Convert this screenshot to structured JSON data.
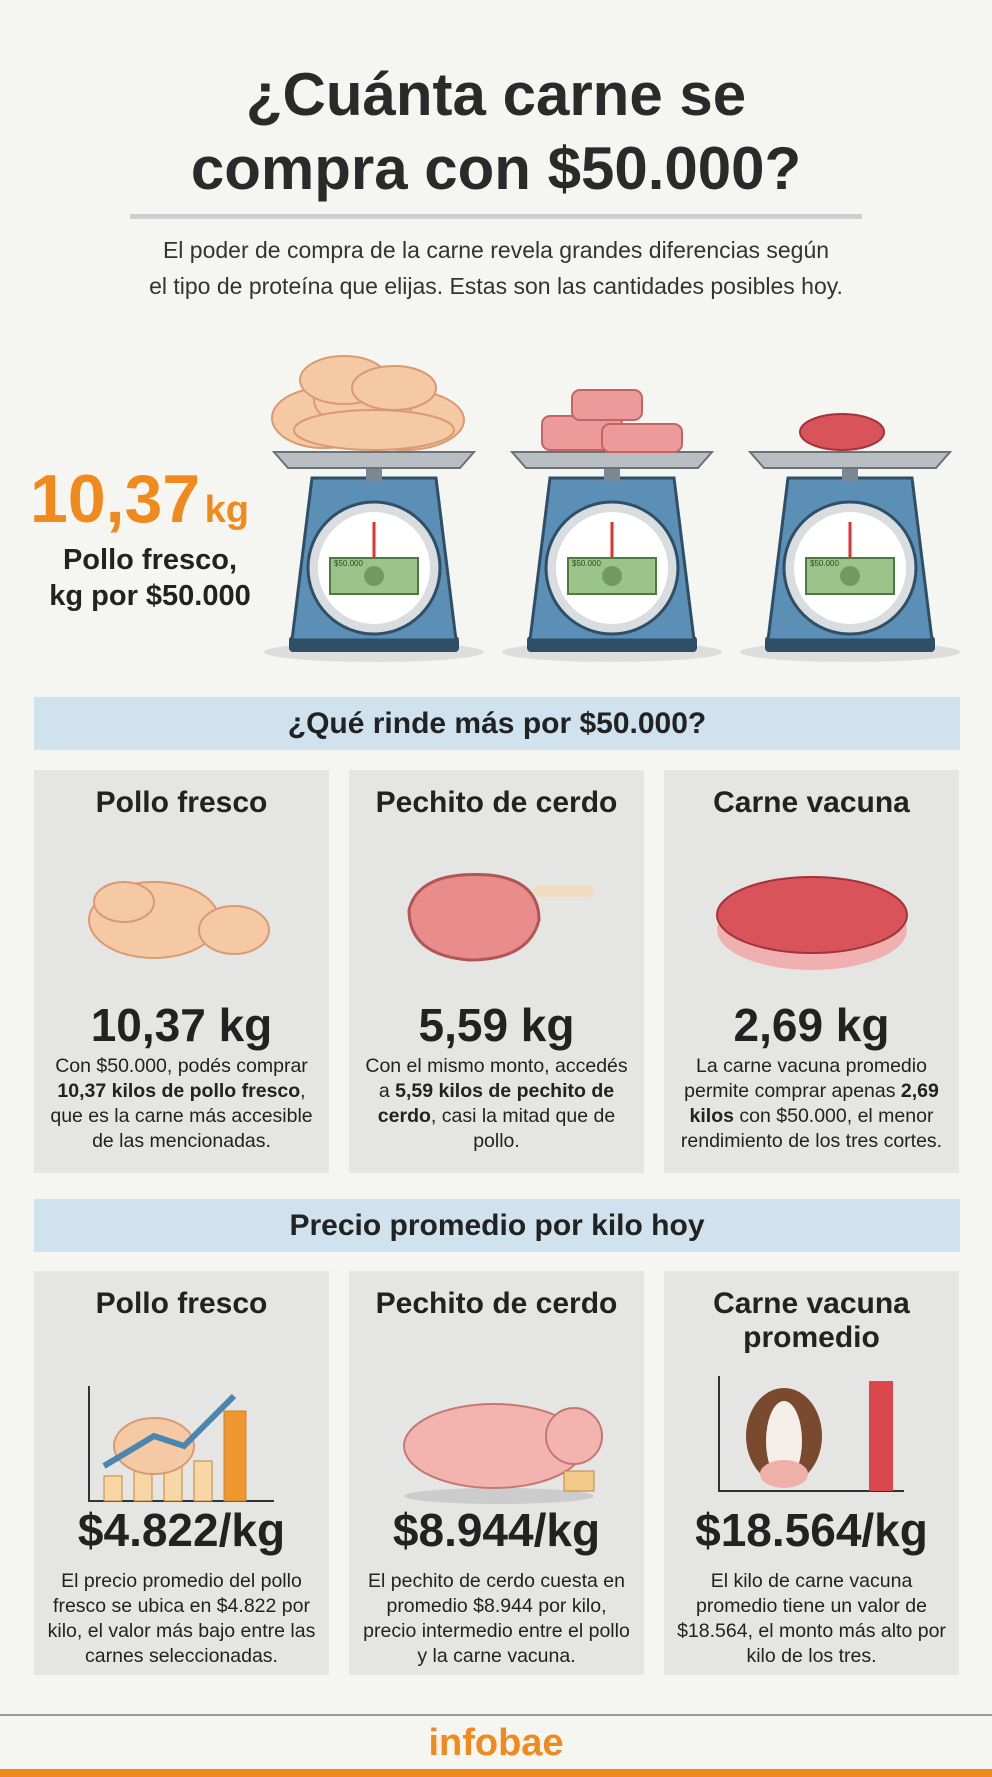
{
  "header": {
    "title": [
      "¿Cuánta carne se",
      "compra con $50.000?"
    ],
    "subtitle": [
      "El poder de compra de la carne revela grandes diferencias según",
      "el tipo de proteína que elijas. Estas son las cantidades posibles hoy."
    ]
  },
  "highlight": {
    "value": "10,37",
    "unit": "kg",
    "label": [
      "Pollo fresco,",
      "kg por $50.000"
    ],
    "bill_label": "$50.000"
  },
  "sections": [
    {
      "title": "¿Qué rinde más por $50.000?",
      "cards": [
        {
          "name": "Pollo fresco",
          "amount": "10,37 kg",
          "description": [
            "Con $50.000, podés comprar ",
            "10,37 kilos de pollo fresco",
            ", que es la carne más accesible de las mencionadas."
          ]
        },
        {
          "name": "Pechito de cerdo",
          "amount": "5,59 kg",
          "description": [
            "Con el mismo monto, accedés a ",
            "5,59 kilos de pechito de cerdo",
            ", casi la mitad que de pollo."
          ]
        },
        {
          "name": "Carne vacuna",
          "amount": "2,69 kg",
          "description": [
            "La carne vacuna promedio permite comprar apenas ",
            "2,69 kilos",
            " con $50.000, el menor rendimiento de los tres cortes."
          ]
        }
      ]
    },
    {
      "title": "Precio promedio por kilo hoy",
      "cards": [
        {
          "name": "Pollo fresco",
          "amount": "$4.822/kg",
          "description": [
            "El precio promedio del pollo fresco se ubica en $4.822 por kilo, el valor más bajo entre las carnes seleccionadas."
          ]
        },
        {
          "name": "Pechito de cerdo",
          "amount": "$8.944/kg",
          "description": [
            "El pechito de cerdo cuesta en promedio $8.944 por kilo, precio intermedio entre el pollo y la carne vacuna."
          ]
        },
        {
          "name": "Carne vacuna promedio",
          "amount": "$18.564/kg",
          "description": [
            "El kilo de carne vacuna promedio tiene un valor de $18.564, el monto más alto por kilo de los tres."
          ]
        }
      ]
    }
  ],
  "footer": {
    "brand": "infobae"
  }
}
